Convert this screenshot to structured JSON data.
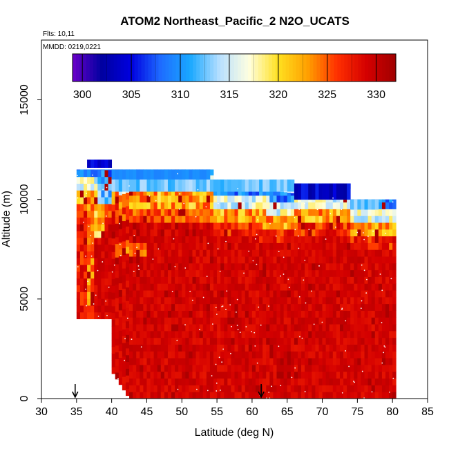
{
  "chart_data": {
    "type": "heatmap",
    "title": "ATOM2 Northeast_Pacific_2 N2O_UCATS",
    "subtitle_flights": "Flts: 10,11",
    "subtitle_dates": "MMDD: 0219,0221",
    "xlabel": "Latitude (deg N)",
    "ylabel": "Altitude (m)",
    "xlim": [
      30,
      85
    ],
    "ylim": [
      0,
      18000
    ],
    "x_ticks": [
      30,
      35,
      40,
      45,
      50,
      55,
      60,
      65,
      70,
      75,
      80,
      85
    ],
    "y_ticks": [
      0,
      5000,
      10000,
      15000
    ],
    "colorbar": {
      "range": [
        299,
        332
      ],
      "ticks": [
        300,
        305,
        310,
        315,
        320,
        325,
        330
      ],
      "colors": [
        "#6a00c8",
        "#0000a0",
        "#0000e0",
        "#1e6cff",
        "#19a8ff",
        "#b7dfff",
        "#ffffe0",
        "#ffe020",
        "#ffa000",
        "#ff3000",
        "#d40000",
        "#a00000"
      ]
    },
    "flight_markers_lat": [
      34.8,
      61.3
    ],
    "profiles": [
      {
        "lat_range": [
          35,
          40
        ],
        "alt_range": [
          4000,
          11500
        ],
        "mean": 329
      },
      {
        "lat_range": [
          36,
          42
        ],
        "alt_range": [
          10000,
          12000
        ],
        "mean": 308
      },
      {
        "lat_range": [
          40,
          54
        ],
        "alt_range": [
          0,
          11500
        ],
        "mean": 329
      },
      {
        "lat_range": [
          54,
          68
        ],
        "alt_range": [
          0,
          10300
        ],
        "mean": 330
      },
      {
        "lat_range": [
          66,
          74
        ],
        "alt_range": [
          9500,
          10800
        ],
        "mean": 312
      },
      {
        "lat_range": [
          68,
          80.5
        ],
        "alt_range": [
          0,
          10000
        ],
        "mean": 329
      }
    ],
    "grid": false,
    "legend": "top (colorbar)"
  }
}
